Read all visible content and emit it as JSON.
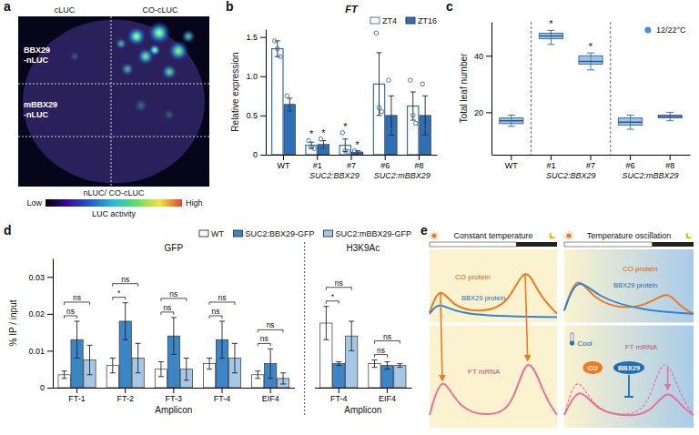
{
  "chart_data": [
    {
      "panel": "b",
      "type": "bar",
      "title": "FT",
      "y_label": "Relative expression",
      "categories": [
        "WT",
        "#1",
        "#7",
        "#6",
        "#8"
      ],
      "groups": [
        {
          "label": "SUC2:BBX29",
          "from": 1,
          "to": 2
        },
        {
          "label": "SUC2:mBBX29",
          "from": 3,
          "to": 4
        }
      ],
      "series": [
        {
          "name": "ZT4",
          "color": "#2f6fb5",
          "values": [
            1.35,
            0.12,
            0.12,
            0.9,
            0.62
          ],
          "errors": [
            0.1,
            0.04,
            0.08,
            0.4,
            0.18
          ],
          "points": [
            [
              1.45,
              1.35,
              1.25
            ],
            [
              0.18,
              0.1,
              0.08
            ],
            [
              0.28,
              0.05,
              0.04
            ],
            [
              1.55,
              0.6,
              0.55
            ],
            [
              0.95,
              0.5,
              0.4
            ]
          ]
        },
        {
          "name": "ZT16",
          "color": "#2f6fb5",
          "values": [
            0.64,
            0.13,
            0.03,
            0.5,
            0.5
          ],
          "errors": [
            0.08,
            0.05,
            0.02,
            0.25,
            0.25
          ],
          "points": [
            [
              0.75,
              0.55,
              0.62
            ],
            [
              0.2,
              0.1,
              0.1
            ],
            [
              0.05,
              0.02,
              0.02
            ],
            [
              0.95,
              0.3,
              0.25
            ],
            [
              0.9,
              0.35,
              0.25
            ]
          ]
        }
      ],
      "annotations": [
        {
          "text": "*",
          "series": 0,
          "category": 1
        },
        {
          "text": "*",
          "series": 1,
          "category": 1
        },
        {
          "text": "*",
          "series": 0,
          "category": 2
        },
        {
          "text": "*",
          "series": 1,
          "category": 2
        }
      ],
      "ylim": [
        0,
        1.6
      ],
      "yticks": [
        0,
        0.5,
        {
          "value": 1,
          "label": "1.0"
        },
        1.5
      ],
      "legend": "top"
    },
    {
      "panel": "c",
      "type": "box",
      "y_label": "Total leaf number",
      "categories": [
        "WT",
        "#1",
        "#7",
        "#6",
        "#8"
      ],
      "groups": [
        {
          "label": "SUC2:BBX29",
          "from": 1,
          "to": 2
        },
        {
          "label": "SUC2:mBBX29",
          "from": 3,
          "to": 4
        }
      ],
      "series": [
        {
          "name": "12/22°C",
          "color": "#4a90d9",
          "min": [
            15,
            44,
            35,
            14,
            17
          ],
          "q1": [
            16,
            46,
            37,
            15.5,
            18
          ],
          "median": [
            17,
            47,
            38,
            16.5,
            18.5
          ],
          "q3": [
            18,
            48,
            40,
            18,
            19
          ],
          "max": [
            19,
            49,
            41,
            19,
            20
          ]
        }
      ],
      "annotations": [
        {
          "text": "*",
          "category": 1
        },
        {
          "text": "*",
          "category": 2
        }
      ],
      "ylim": [
        5,
        52
      ],
      "yticks": [
        20,
        40
      ],
      "legend": "top-right"
    },
    {
      "panel": "d",
      "type": "bar",
      "y_label": "% IP / input",
      "x_label": "Amplicon",
      "categories": [
        "FT-1",
        "FT-2",
        "FT-3",
        "FT-4",
        "EIF4",
        "FT-4",
        "EIF4"
      ],
      "facets": [
        {
          "title": "GFP",
          "from": 0,
          "to": 4
        },
        {
          "title": "H3K9Ac",
          "from": 5,
          "to": 6
        }
      ],
      "series": [
        {
          "name": "WT",
          "color": "#ffffff",
          "values": [
            0.0035,
            0.006,
            0.005,
            0.0065,
            0.0035,
            0.0175,
            0.0065
          ],
          "errors": [
            0.001,
            0.002,
            0.002,
            0.0015,
            0.001,
            0.0045,
            0.001
          ]
        },
        {
          "name": "SUC2:BBX29-GFP",
          "color": "#3b86c6",
          "values": [
            0.013,
            0.018,
            0.014,
            0.013,
            0.0065,
            0.0065,
            0.006
          ],
          "errors": [
            0.005,
            0.005,
            0.005,
            0.005,
            0.004,
            0.0005,
            0.001
          ]
        },
        {
          "name": "SUC2:mBBX29-GFP",
          "color": "#a7c7e7",
          "values": [
            0.0075,
            0.008,
            0.005,
            0.008,
            0.0025,
            0.014,
            0.006
          ],
          "errors": [
            0.004,
            0.004,
            0.003,
            0.004,
            0.0015,
            0.004,
            0.0005
          ]
        }
      ],
      "significance": [
        [
          "ns",
          "ns"
        ],
        [
          "*",
          "ns"
        ],
        [
          "ns",
          "ns"
        ],
        [
          "ns",
          "ns"
        ],
        [
          "ns",
          "ns"
        ],
        [
          "*",
          "ns"
        ],
        [
          "ns",
          "ns"
        ]
      ],
      "ylim": [
        0,
        0.035
      ],
      "yticks": [
        0,
        0.01,
        0.02,
        0.03
      ],
      "legend": "top"
    }
  ],
  "panel_a": {
    "panel": "a",
    "columns": [
      "cLUC",
      "CO-cLUC"
    ],
    "rows": [
      "BBX29-nLUC",
      "mBBX29-nLUC"
    ],
    "colorbar": {
      "title": "nLUC/ CO-cLUC",
      "low": "Low",
      "high": "High",
      "label": "LUC activity"
    }
  },
  "panel_e": {
    "panel": "e",
    "left": {
      "title": "Constant temperature",
      "co": "CO protein",
      "bbx29": "BBX29 protein",
      "ft": "FT mRNA"
    },
    "right": {
      "title": "Temperature oscillation",
      "co": "CO protein",
      "bbx29": "BBX29 protein",
      "ft": "FT mRNA",
      "cool": "Cool",
      "co_badge": "CO",
      "bbx29_badge": "BBX29"
    }
  }
}
